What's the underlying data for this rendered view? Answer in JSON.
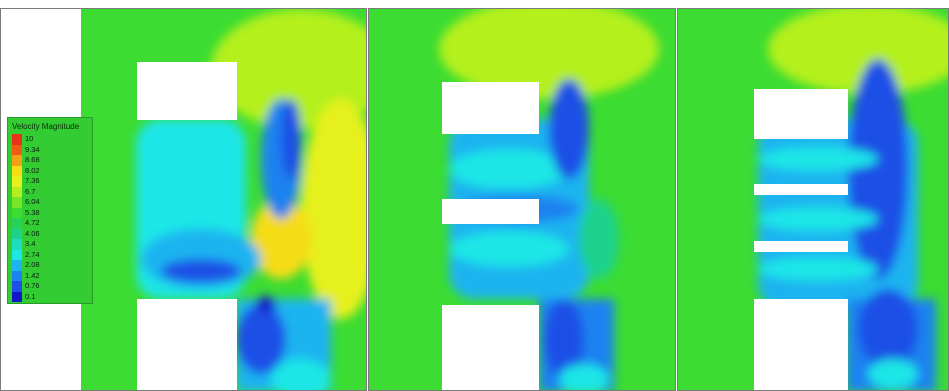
{
  "legend": {
    "title": "Velocity Magnitude",
    "levels": [
      {
        "label": "10",
        "color": "#e8321a"
      },
      {
        "label": "9.34",
        "color": "#f05a14"
      },
      {
        "label": "8.68",
        "color": "#f5a014"
      },
      {
        "label": "8.02",
        "color": "#f5dc14"
      },
      {
        "label": "7.36",
        "color": "#e6f01e"
      },
      {
        "label": "6.7",
        "color": "#b4f01e"
      },
      {
        "label": "6.04",
        "color": "#78e628"
      },
      {
        "label": "5.38",
        "color": "#3cdc32"
      },
      {
        "label": "4.72",
        "color": "#28d25a"
      },
      {
        "label": "4.06",
        "color": "#1ed28c"
      },
      {
        "label": "3.4",
        "color": "#1edcbe"
      },
      {
        "label": "2.74",
        "color": "#1ee6e6"
      },
      {
        "label": "2.08",
        "color": "#1eb4f0"
      },
      {
        "label": "1.42",
        "color": "#1e82f0"
      },
      {
        "label": "0.76",
        "color": "#1e50e6"
      },
      {
        "label": "0.1",
        "color": "#1414c8"
      }
    ]
  }
}
